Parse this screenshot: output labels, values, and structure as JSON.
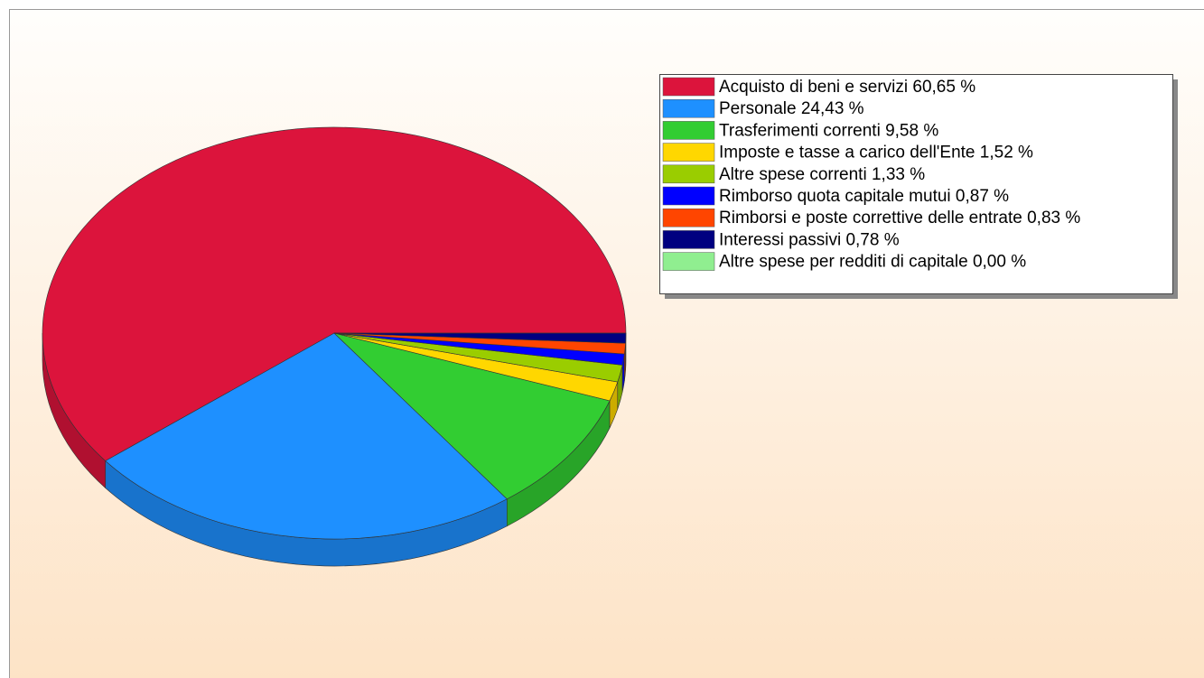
{
  "chart_data": {
    "type": "pie",
    "categories": [
      "Acquisto di beni e servizi",
      "Personale",
      "Trasferimenti correnti",
      "Imposte e tasse a carico dell'Ente",
      "Altre spese correnti",
      "Rimborso quota capitale mutui",
      "Rimborsi e poste correttive delle entrate",
      "Interessi passivi",
      "Altre spese per redditi di capitale"
    ],
    "values": [
      60.65,
      24.43,
      9.58,
      1.52,
      1.33,
      0.87,
      0.83,
      0.78,
      0.0
    ],
    "value_labels": [
      "60,65 %",
      "24,43 %",
      "9,58 %",
      "1,52 %",
      "1,33 %",
      "0,87 %",
      "0,83 %",
      "0,78 %",
      "0,00 %"
    ],
    "colors": [
      "#dc143c",
      "#1e90ff",
      "#32cd32",
      "#ffd700",
      "#9acd00",
      "#0000ff",
      "#ff4500",
      "#000080",
      "#90ee90"
    ]
  }
}
